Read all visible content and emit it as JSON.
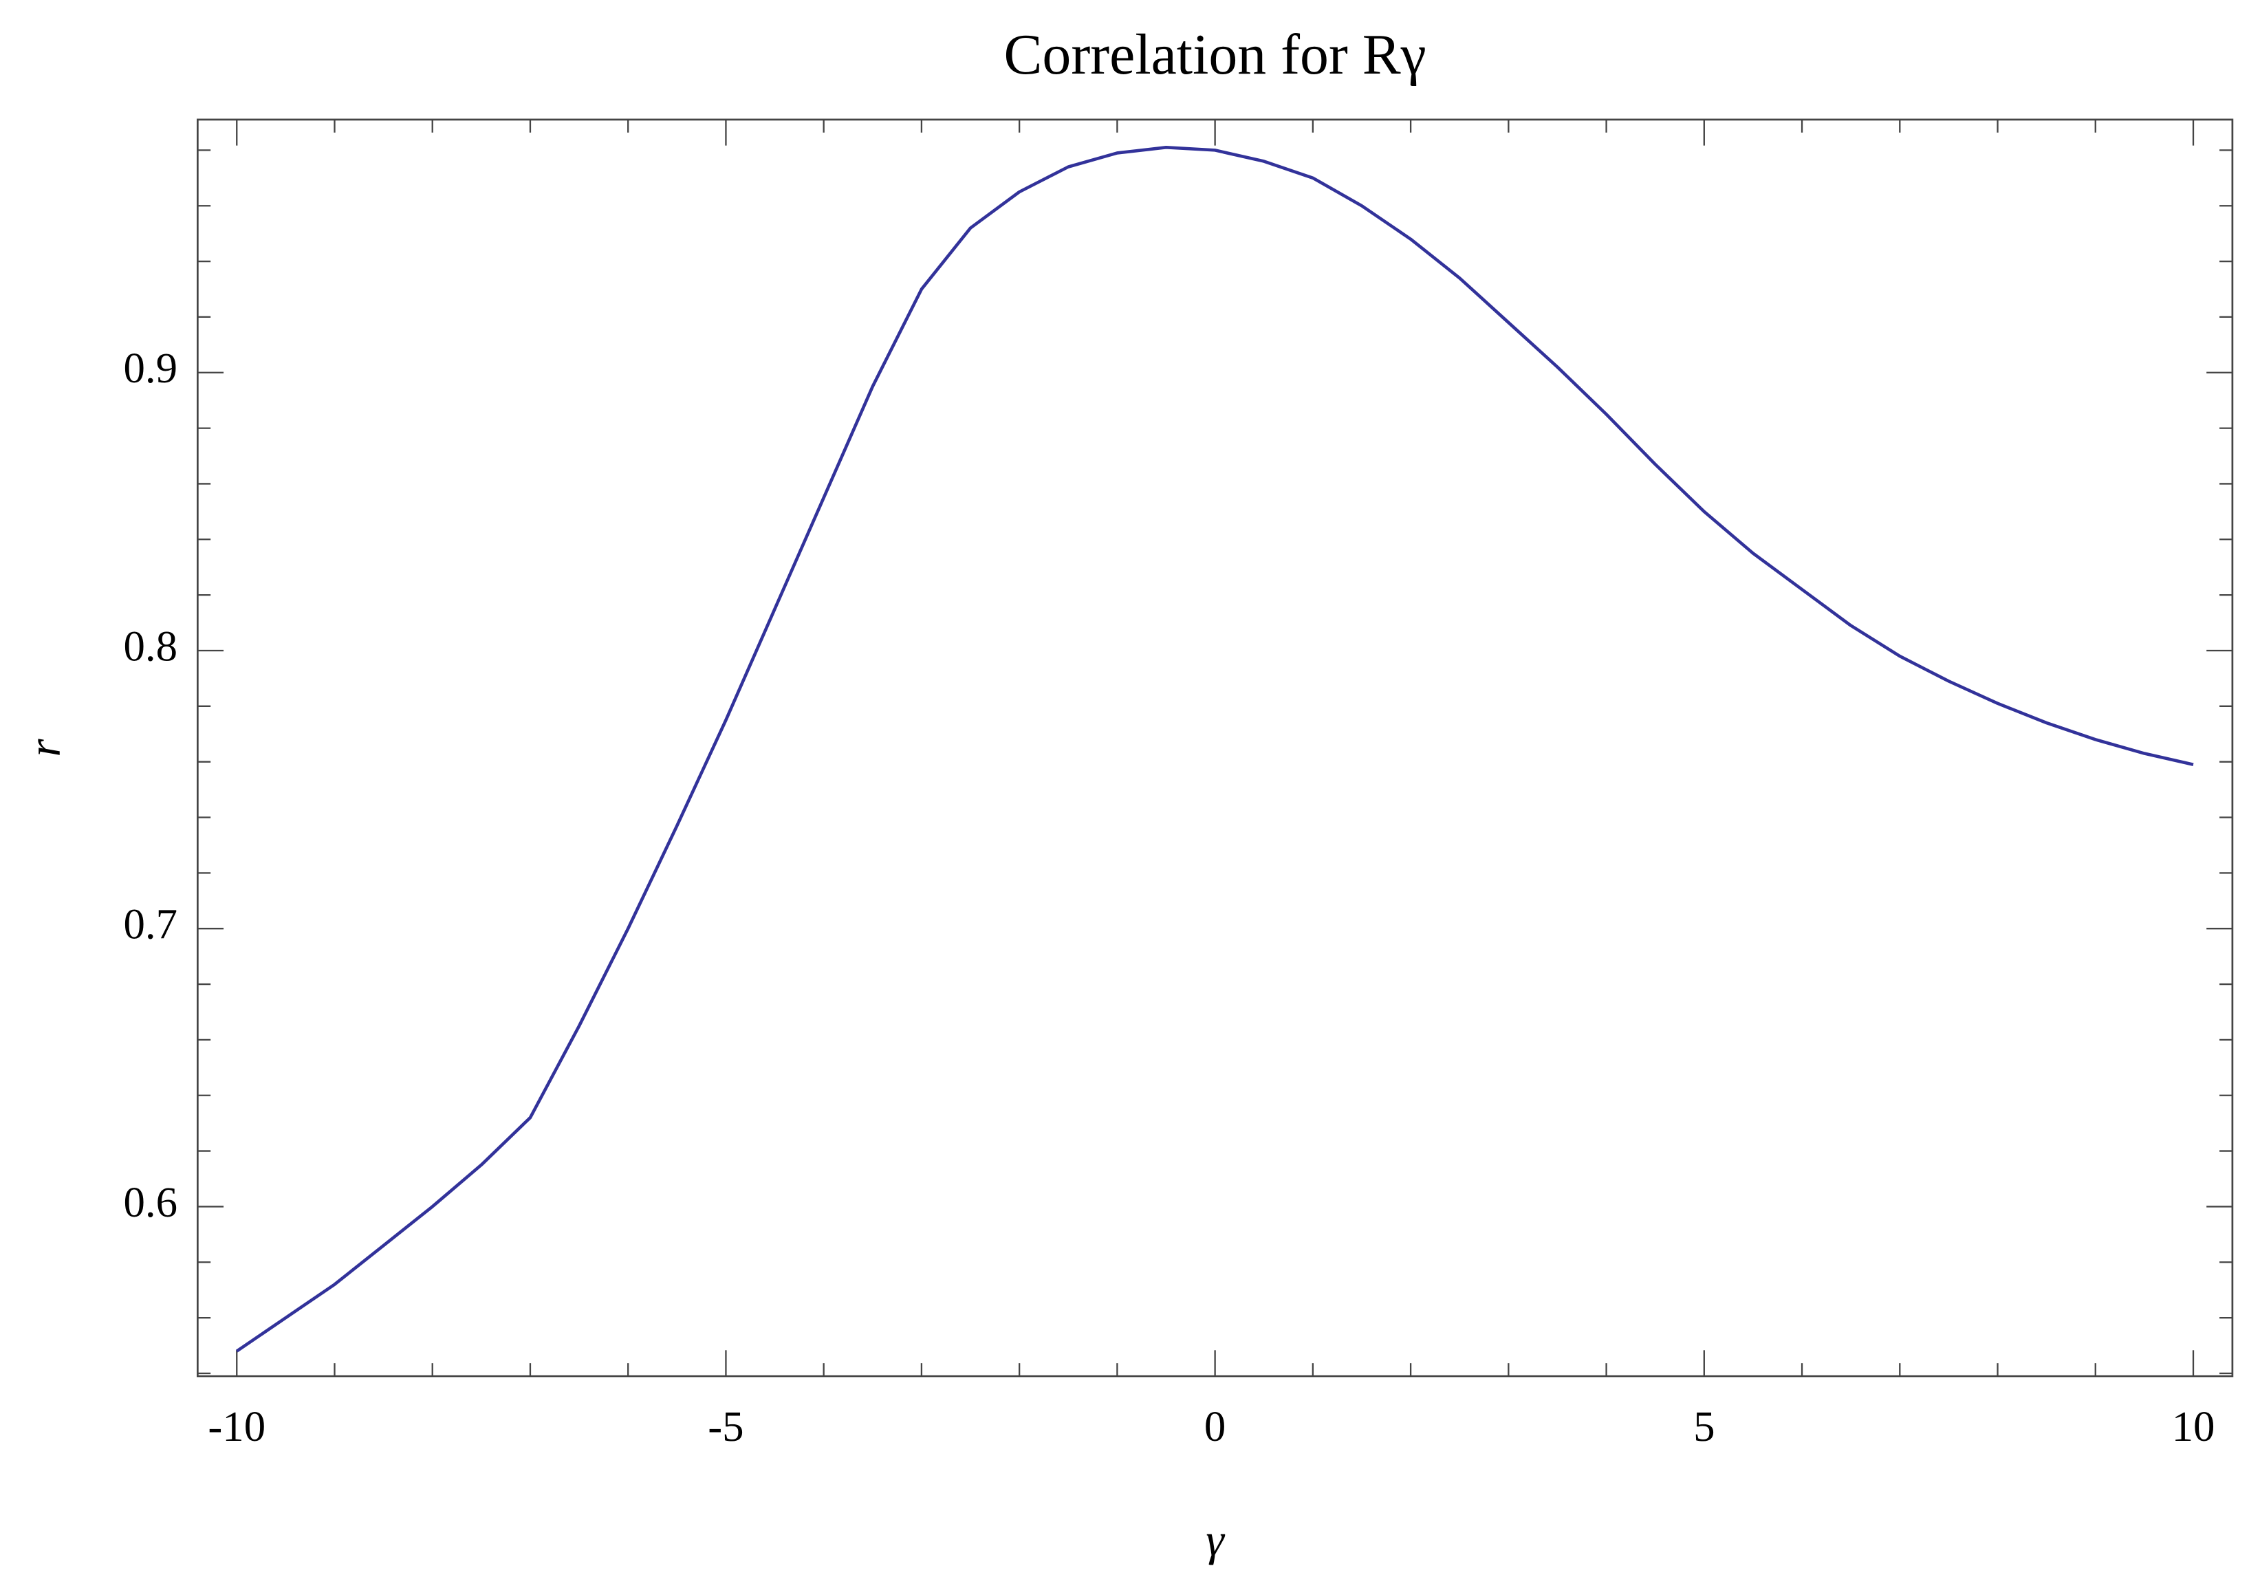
{
  "chart_data": {
    "type": "line",
    "title": "Correlation for Rγ",
    "x_label": "γ",
    "y_label": "r",
    "x": [
      -10,
      -9.5,
      -9,
      -8.5,
      -8,
      -7.5,
      -7,
      -6.5,
      -6,
      -5.5,
      -5,
      -4.5,
      -4,
      -3.5,
      -3,
      -2.5,
      -2,
      -1.5,
      -1,
      -0.5,
      0,
      0.5,
      1,
      1.5,
      2,
      2.5,
      3,
      3.5,
      4,
      4.5,
      5,
      5.5,
      6,
      6.5,
      7,
      7.5,
      8,
      8.5,
      9,
      9.5,
      10
    ],
    "series": [
      {
        "color": "#32329a",
        "values": [
          0.548,
          0.56,
          0.572,
          0.586,
          0.6,
          0.615,
          0.632,
          0.665,
          0.7,
          0.737,
          0.775,
          0.815,
          0.855,
          0.895,
          0.93,
          0.952,
          0.965,
          0.974,
          0.979,
          0.981,
          0.98,
          0.976,
          0.97,
          0.96,
          0.948,
          0.934,
          0.918,
          0.902,
          0.885,
          0.867,
          0.85,
          0.835,
          0.822,
          0.809,
          0.798,
          0.789,
          0.781,
          0.774,
          0.768,
          0.763,
          0.759
        ]
      }
    ],
    "xlim": [
      -10.4,
      10.4
    ],
    "ylim": [
      0.539,
      0.991
    ],
    "xticks": [
      -10,
      -5,
      0,
      5,
      10
    ],
    "yticks": [
      0.6,
      0.7,
      0.8,
      0.9
    ],
    "xminorticks": [
      -9,
      -8,
      -7,
      -6,
      -4,
      -3,
      -2,
      -1,
      1,
      2,
      3,
      4,
      6,
      7,
      8,
      9
    ],
    "yminorticks": [
      0.54,
      0.56,
      0.58,
      0.62,
      0.64,
      0.66,
      0.68,
      0.72,
      0.74,
      0.76,
      0.78,
      0.82,
      0.84,
      0.86,
      0.88,
      0.92,
      0.94,
      0.96,
      0.98
    ],
    "grid": false
  }
}
